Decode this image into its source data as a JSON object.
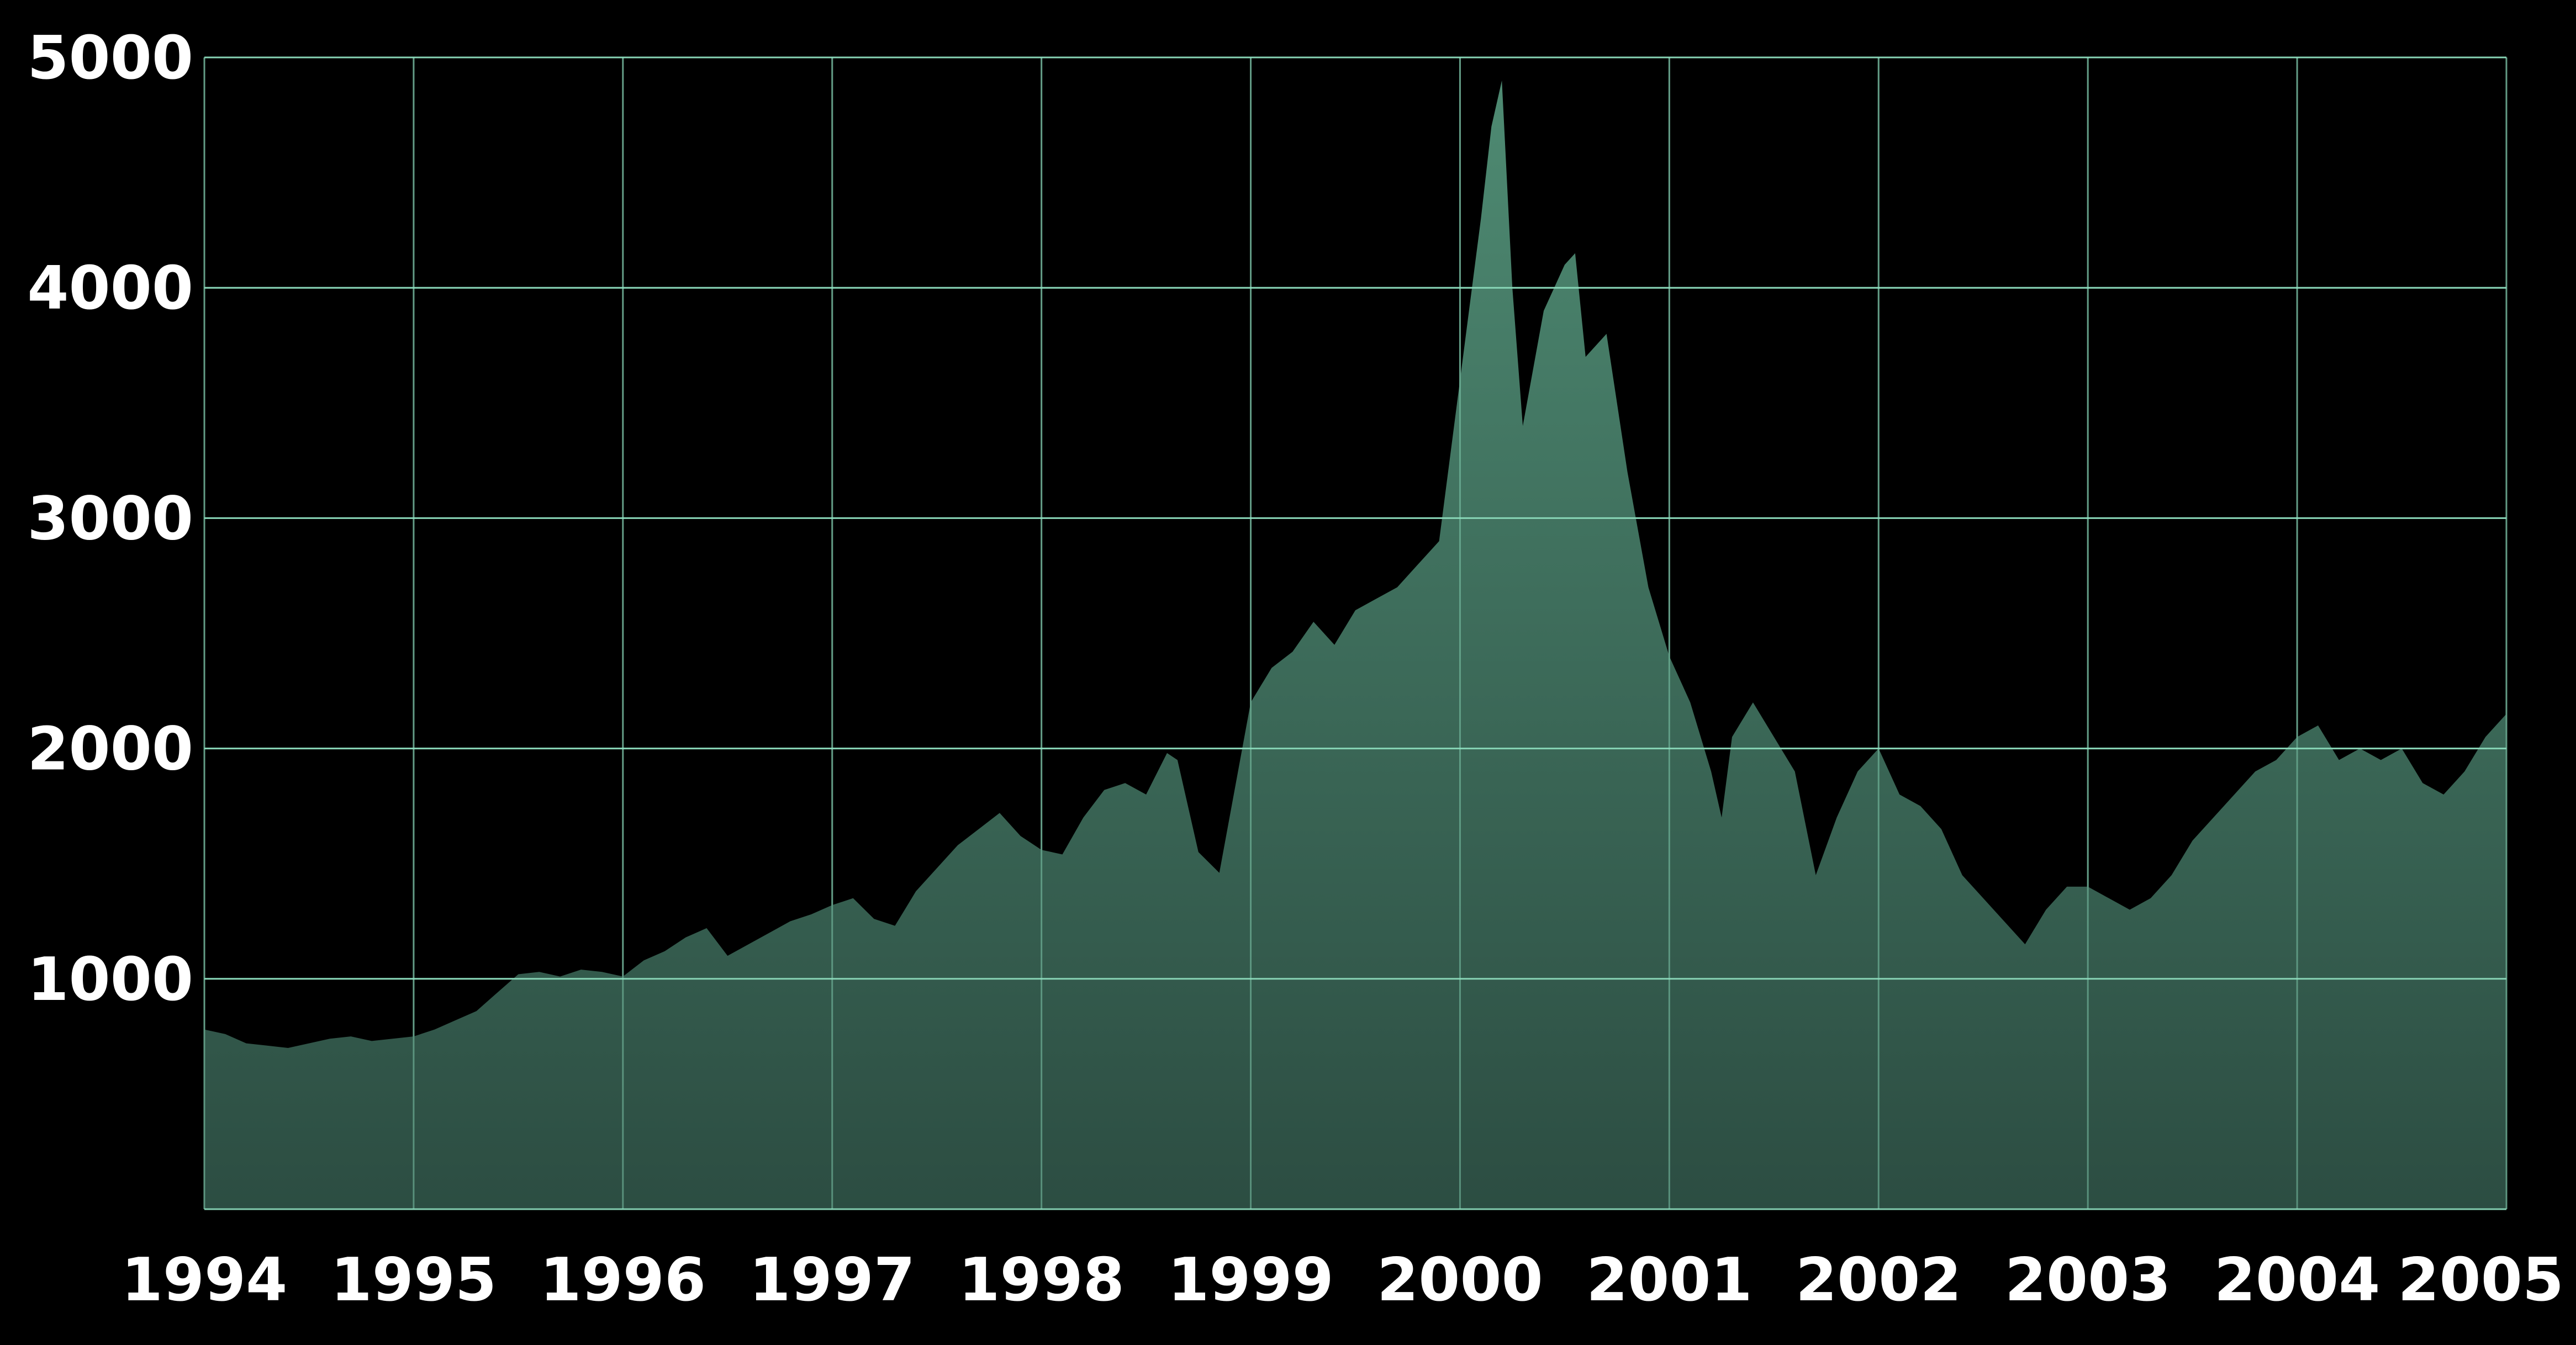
{
  "chart_data": {
    "type": "area",
    "title": "",
    "xlabel": "",
    "ylabel": "",
    "xlim": [
      1994,
      2005
    ],
    "ylim": [
      0,
      5000
    ],
    "grid": true,
    "legend": "none",
    "colors": {
      "background": "#000000",
      "area_fill": "#4e8a72",
      "area_fill_dark": "#2c4d42",
      "grid": "#8fe0c0",
      "tick_text": "#ffffff"
    },
    "x_ticks": [
      "1994",
      "1995",
      "1996",
      "1997",
      "1998",
      "1999",
      "2000",
      "2001",
      "2002",
      "2003",
      "2004",
      "2005"
    ],
    "y_ticks": [
      "1000",
      "2000",
      "3000",
      "4000",
      "5000"
    ],
    "series": [
      {
        "x": [
          1994.0,
          1994.1,
          1994.2,
          1994.3,
          1994.4,
          1994.5,
          1994.6,
          1994.7,
          1994.8,
          1994.9,
          1995.0,
          1995.1,
          1995.2,
          1995.3,
          1995.4,
          1995.5,
          1995.6,
          1995.7,
          1995.8,
          1995.9,
          1996.0,
          1996.1,
          1996.2,
          1996.3,
          1996.4,
          1996.5,
          1996.6,
          1996.7,
          1996.8,
          1996.9,
          1997.0,
          1997.1,
          1997.2,
          1997.3,
          1997.4,
          1997.5,
          1997.6,
          1997.7,
          1997.8,
          1997.9,
          1998.0,
          1998.1,
          1998.2,
          1998.3,
          1998.4,
          1998.5,
          1998.6,
          1998.65,
          1998.75,
          1998.85,
          1999.0,
          1999.1,
          1999.2,
          1999.3,
          1999.4,
          1999.5,
          1999.6,
          1999.7,
          1999.8,
          1999.9,
          2000.0,
          2000.1,
          2000.15,
          2000.2,
          2000.25,
          2000.3,
          2000.4,
          2000.5,
          2000.55,
          2000.6,
          2000.7,
          2000.8,
          2000.9,
          2001.0,
          2001.1,
          2001.2,
          2001.25,
          2001.3,
          2001.4,
          2001.5,
          2001.6,
          2001.7,
          2001.8,
          2001.9,
          2002.0,
          2002.1,
          2002.2,
          2002.3,
          2002.4,
          2002.5,
          2002.6,
          2002.7,
          2002.8,
          2002.9,
          2003.0,
          2003.1,
          2003.2,
          2003.3,
          2003.4,
          2003.5,
          2003.6,
          2003.7,
          2003.8,
          2003.9,
          2004.0,
          2004.1,
          2004.2,
          2004.3,
          2004.4,
          2004.5,
          2004.6,
          2004.7,
          2004.8,
          2004.9,
          2005.0
        ],
        "y": [
          780,
          760,
          720,
          710,
          700,
          720,
          740,
          750,
          730,
          740,
          750,
          780,
          820,
          860,
          940,
          1020,
          1030,
          1010,
          1040,
          1030,
          1010,
          1080,
          1120,
          1180,
          1220,
          1100,
          1150,
          1200,
          1250,
          1280,
          1320,
          1350,
          1260,
          1230,
          1380,
          1480,
          1580,
          1650,
          1720,
          1620,
          1560,
          1540,
          1700,
          1820,
          1850,
          1800,
          1980,
          1950,
          1550,
          1460,
          2200,
          2350,
          2420,
          2550,
          2450,
          2600,
          2650,
          2700,
          2800,
          2900,
          3600,
          4300,
          4700,
          4900,
          4000,
          3400,
          3900,
          4100,
          4150,
          3700,
          3800,
          3200,
          2700,
          2400,
          2200,
          1900,
          1700,
          2050,
          2200,
          2050,
          1900,
          1450,
          1700,
          1900,
          2000,
          1800,
          1750,
          1650,
          1450,
          1350,
          1250,
          1150,
          1300,
          1400,
          1400,
          1350,
          1300,
          1350,
          1450,
          1600,
          1700,
          1800,
          1900,
          1950,
          2050,
          2100,
          1950,
          2000,
          1950,
          2000,
          1850,
          1800,
          1900,
          2050,
          2150
        ]
      }
    ]
  }
}
